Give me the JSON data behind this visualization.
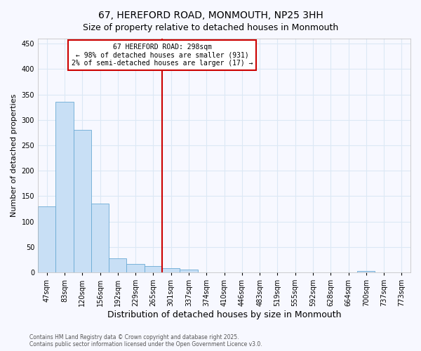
{
  "title": "67, HEREFORD ROAD, MONMOUTH, NP25 3HH",
  "subtitle": "Size of property relative to detached houses in Monmouth",
  "xlabel": "Distribution of detached houses by size in Monmouth",
  "ylabel": "Number of detached properties",
  "bar_labels": [
    "47sqm",
    "83sqm",
    "120sqm",
    "156sqm",
    "192sqm",
    "229sqm",
    "265sqm",
    "301sqm",
    "337sqm",
    "374sqm",
    "410sqm",
    "446sqm",
    "483sqm",
    "519sqm",
    "555sqm",
    "592sqm",
    "628sqm",
    "664sqm",
    "700sqm",
    "737sqm",
    "773sqm"
  ],
  "bar_values": [
    130,
    335,
    280,
    135,
    28,
    17,
    12,
    8,
    5,
    0,
    0,
    0,
    0,
    0,
    0,
    0,
    0,
    0,
    2,
    0,
    0
  ],
  "vline_x": 7,
  "annotation_line1": "67 HEREFORD ROAD: 298sqm",
  "annotation_line2": "← 98% of detached houses are smaller (931)",
  "annotation_line3": "2% of semi-detached houses are larger (17) →",
  "bar_color": "#c8dff5",
  "bar_edge_color": "#6aaad4",
  "line_color": "#cc0000",
  "background_color": "#f7f8ff",
  "grid_color": "#dce8f5",
  "annotation_box_edge": "#cc0000",
  "footer_line1": "Contains HM Land Registry data © Crown copyright and database right 2025.",
  "footer_line2": "Contains public sector information licensed under the Open Government Licence v3.0.",
  "ylim": [
    0,
    460
  ],
  "yticks": [
    0,
    50,
    100,
    150,
    200,
    250,
    300,
    350,
    400,
    450
  ],
  "title_fontsize": 10,
  "subtitle_fontsize": 9,
  "tick_fontsize": 7,
  "ylabel_fontsize": 8,
  "xlabel_fontsize": 9,
  "annot_fontsize": 7,
  "footer_fontsize": 5.5
}
